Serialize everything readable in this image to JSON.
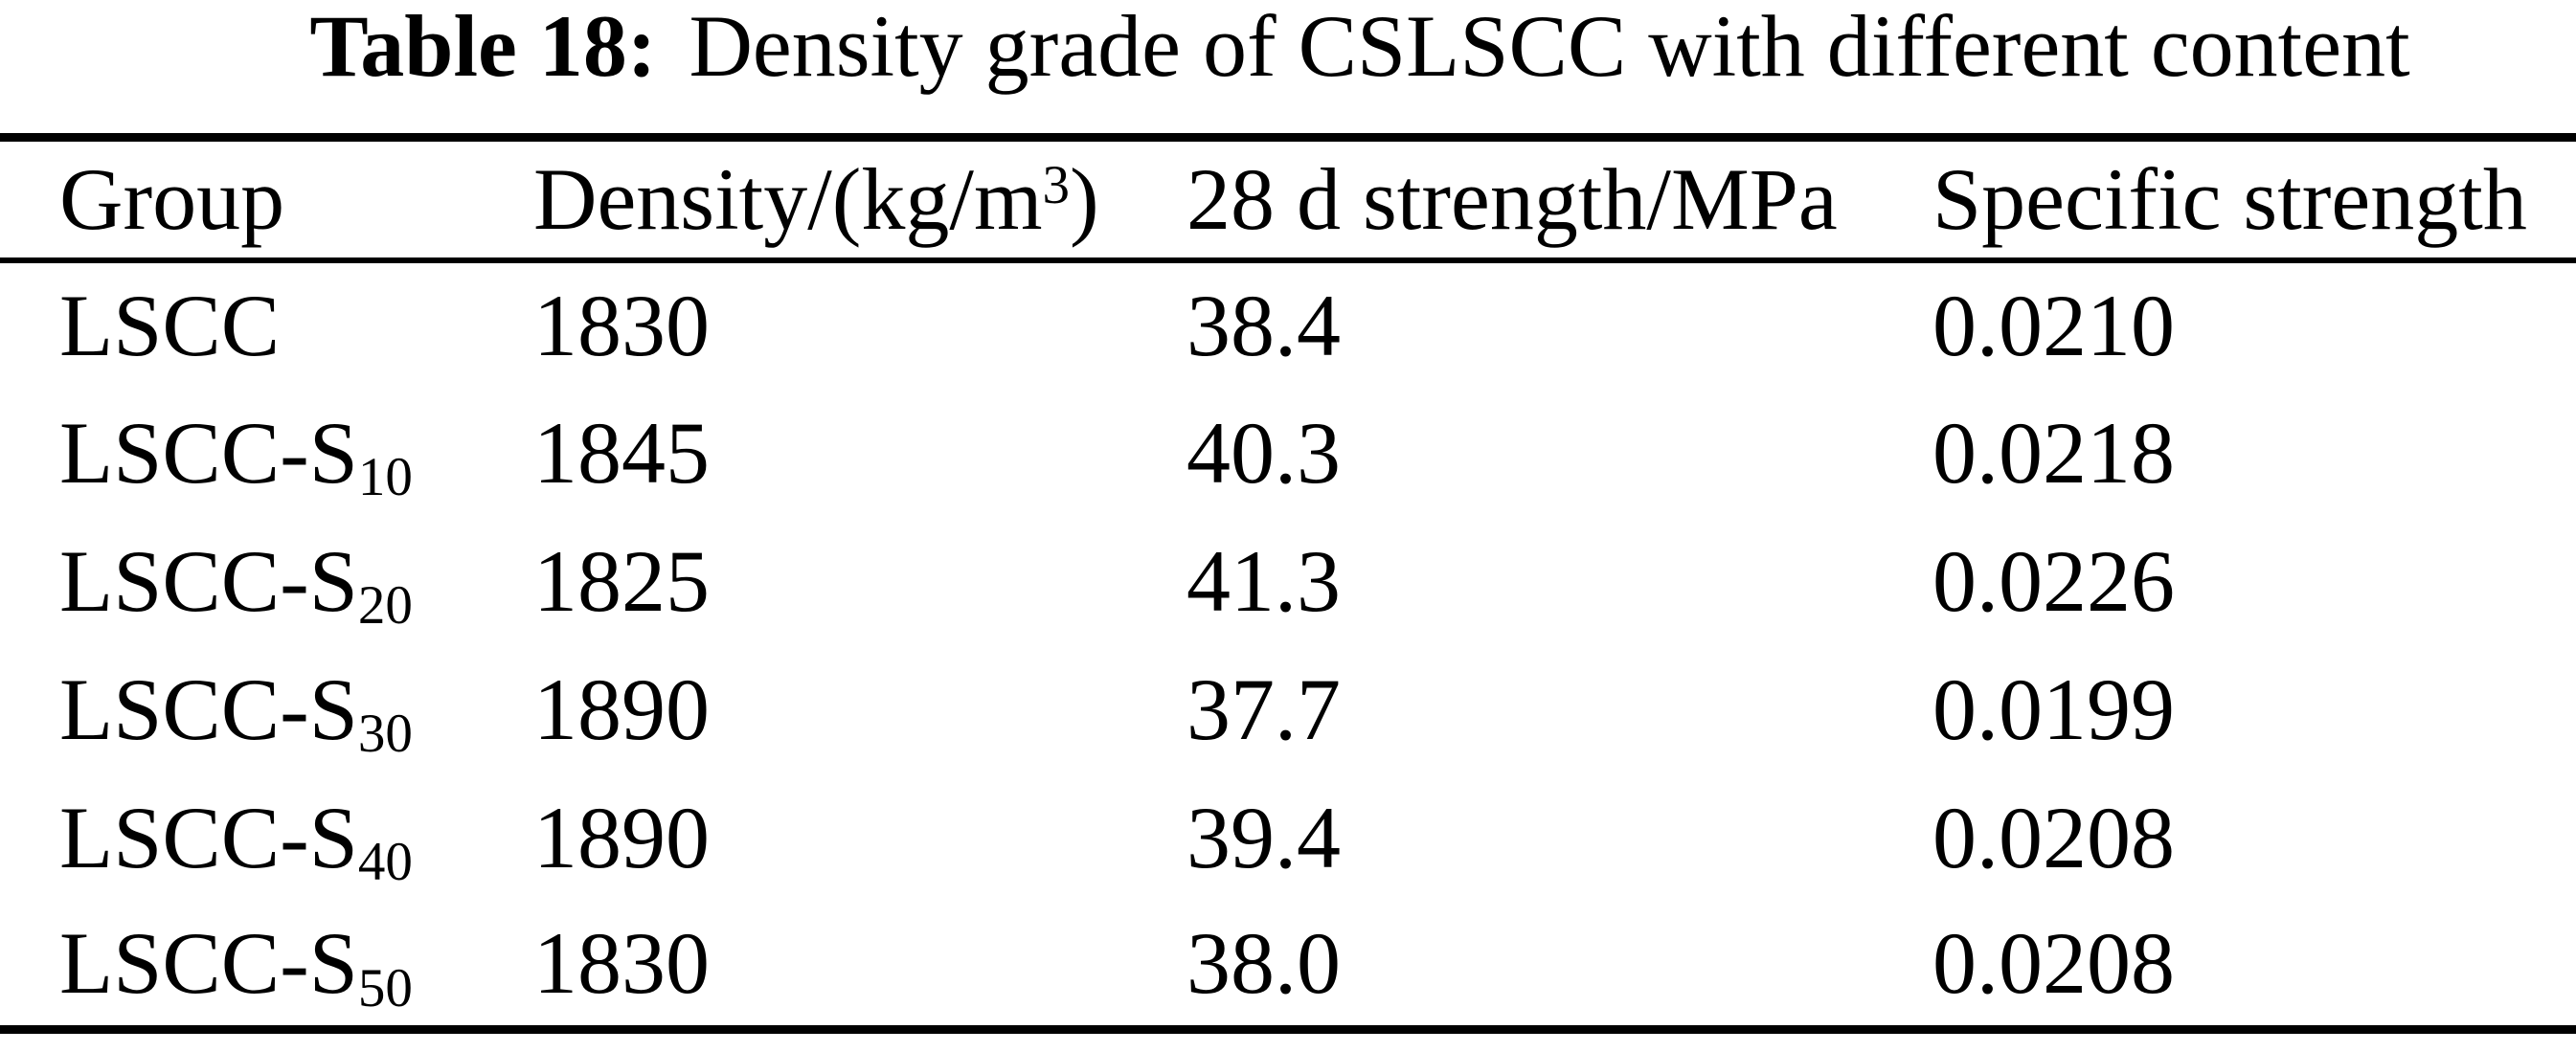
{
  "page": {
    "background_color": "#ffffff",
    "text_color": "#000000"
  },
  "caption": {
    "label": "Table 18:",
    "text": "Density grade of CSLSCC with different content"
  },
  "table": {
    "header": {
      "group": "Group",
      "density_pre": "Density/(kg/m",
      "density_sup": "3",
      "density_post": ")",
      "strength": "28 d strength/MPa",
      "specific": "Specific strength"
    },
    "rows": [
      {
        "group_base": "LSCC",
        "group_sub": "",
        "density": "1830",
        "strength": "38.4",
        "specific": "0.0210"
      },
      {
        "group_base": "LSCC-S",
        "group_sub": "10",
        "density": "1845",
        "strength": "40.3",
        "specific": "0.0218"
      },
      {
        "group_base": "LSCC-S",
        "group_sub": "20",
        "density": "1825",
        "strength": "41.3",
        "specific": "0.0226"
      },
      {
        "group_base": "LSCC-S",
        "group_sub": "30",
        "density": "1890",
        "strength": "37.7",
        "specific": "0.0199"
      },
      {
        "group_base": "LSCC-S",
        "group_sub": "40",
        "density": "1890",
        "strength": "39.4",
        "specific": "0.0208"
      },
      {
        "group_base": "LSCC-S",
        "group_sub": "50",
        "density": "1830",
        "strength": "38.0",
        "specific": "0.0208"
      }
    ]
  },
  "chart_data": {
    "type": "table",
    "title": "Table 18: Density grade of CSLSCC with different content",
    "columns": [
      "Group",
      "Density/(kg/m^3)",
      "28 d strength/MPa",
      "Specific strength"
    ],
    "rows": [
      [
        "LSCC",
        1830,
        38.4,
        0.021
      ],
      [
        "LSCC-S10",
        1845,
        40.3,
        0.0218
      ],
      [
        "LSCC-S20",
        1825,
        41.3,
        0.0226
      ],
      [
        "LSCC-S30",
        1890,
        37.7,
        0.0199
      ],
      [
        "LSCC-S40",
        1890,
        39.4,
        0.0208
      ],
      [
        "LSCC-S50",
        1830,
        38.0,
        0.0208
      ]
    ]
  }
}
